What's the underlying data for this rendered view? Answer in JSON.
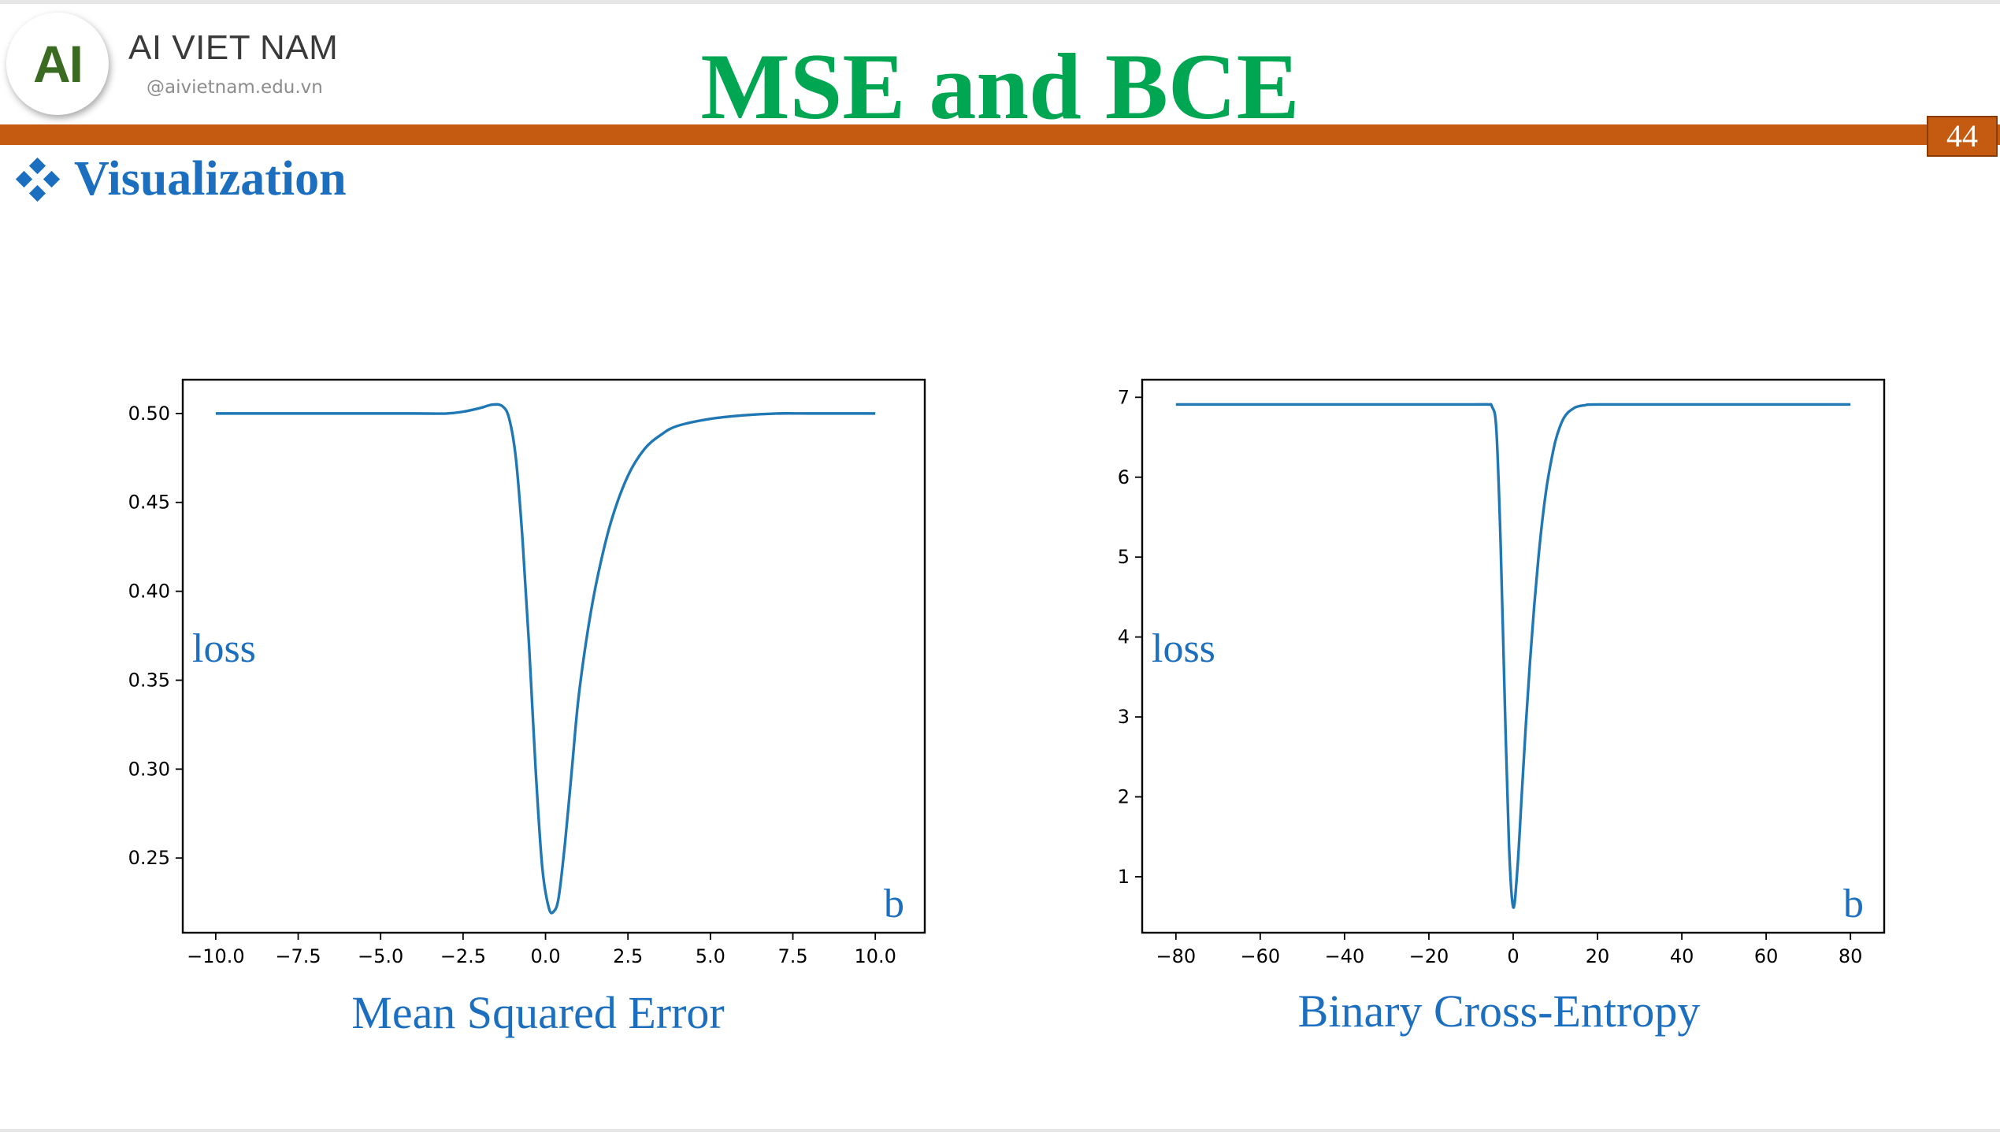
{
  "header": {
    "logo_letters": "AI",
    "brand_name": "AI VIET NAM",
    "brand_url": "@aivietnam.edu.vn",
    "title": "MSE and BCE",
    "page_number": "44"
  },
  "section": {
    "heading": "Visualization",
    "icon": "diamond-bullet-icon"
  },
  "colors": {
    "title": "#00a651",
    "accent_bar": "#c55a11",
    "heading": "#1c6fbf",
    "series": "#1f77b4"
  },
  "chart_data": [
    {
      "type": "line",
      "caption": "Mean Squared Error",
      "ylabel": "loss",
      "xlabel": "b",
      "xlim": [
        -11,
        11.5
      ],
      "ylim": [
        0.208,
        0.519
      ],
      "xticks": [
        -10.0,
        -7.5,
        -5.0,
        -2.5,
        0.0,
        2.5,
        5.0,
        7.5,
        10.0
      ],
      "xtick_labels": [
        "−10.0",
        "−7.5",
        "−5.0",
        "−2.5",
        "0.0",
        "2.5",
        "5.0",
        "7.5",
        "10.0"
      ],
      "yticks": [
        0.25,
        0.3,
        0.35,
        0.4,
        0.45,
        0.5
      ],
      "ytick_labels": [
        "0.25",
        "0.30",
        "0.35",
        "0.40",
        "0.45",
        "0.50"
      ],
      "series": [
        {
          "x": [
            -10,
            -6,
            -4,
            -3,
            -2.5,
            -2,
            -1.6,
            -1.3,
            -1.1,
            -0.9,
            -0.7,
            -0.5,
            -0.3,
            -0.1,
            0.1,
            0.25,
            0.4,
            0.6,
            0.8,
            1.0,
            1.3,
            1.6,
            2.0,
            2.5,
            3.0,
            3.5,
            4.0,
            5.0,
            6.0,
            7.0,
            8.0,
            10.0
          ],
          "y": [
            0.5,
            0.5,
            0.5,
            0.5,
            0.501,
            0.503,
            0.505,
            0.504,
            0.497,
            0.475,
            0.43,
            0.37,
            0.3,
            0.245,
            0.222,
            0.22,
            0.228,
            0.26,
            0.3,
            0.34,
            0.38,
            0.41,
            0.44,
            0.465,
            0.48,
            0.488,
            0.493,
            0.497,
            0.499,
            0.5,
            0.5,
            0.5
          ]
        }
      ]
    },
    {
      "type": "line",
      "caption": "Binary Cross-Entropy",
      "ylabel": "loss",
      "xlabel": "b",
      "xlim": [
        -88,
        88
      ],
      "ylim": [
        0.3,
        7.22
      ],
      "xticks": [
        -80,
        -60,
        -40,
        -20,
        0,
        20,
        40,
        60,
        80
      ],
      "xtick_labels": [
        "−80",
        "−60",
        "−40",
        "−20",
        "0",
        "20",
        "40",
        "60",
        "80"
      ],
      "yticks": [
        1,
        2,
        3,
        4,
        5,
        6,
        7
      ],
      "ytick_labels": [
        "1",
        "2",
        "3",
        "4",
        "5",
        "6",
        "7"
      ],
      "series": [
        {
          "x": [
            -80,
            -40,
            -10,
            -6,
            -5,
            -4,
            -3,
            -2,
            -1,
            0,
            1,
            2,
            3,
            4,
            5,
            6,
            7,
            8,
            9,
            10,
            11,
            12,
            13,
            14,
            15,
            17,
            20,
            40,
            80
          ],
          "y": [
            6.91,
            6.91,
            6.91,
            6.91,
            6.88,
            6.6,
            5.2,
            3.2,
            1.4,
            0.62,
            1.1,
            2.0,
            2.9,
            3.7,
            4.4,
            5.0,
            5.5,
            5.9,
            6.2,
            6.45,
            6.62,
            6.74,
            6.81,
            6.85,
            6.88,
            6.9,
            6.91,
            6.91,
            6.91
          ]
        }
      ]
    }
  ]
}
